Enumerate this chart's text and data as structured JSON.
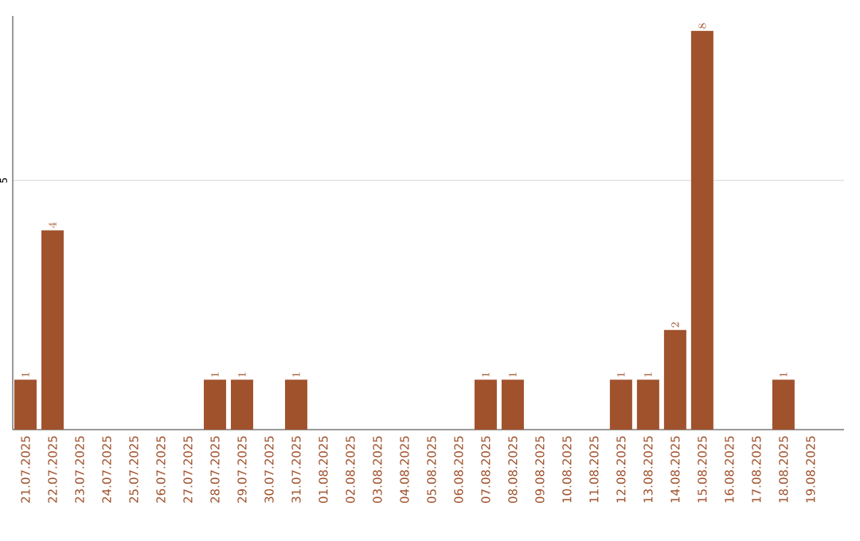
{
  "chart_data": {
    "type": "bar",
    "categories": [
      "21.07.2025",
      "22.07.2025",
      "23.07.2025",
      "24.07.2025",
      "25.07.2025",
      "26.07.2025",
      "27.07.2025",
      "28.07.2025",
      "29.07.2025",
      "30.07.2025",
      "31.07.2025",
      "01.08.2025",
      "02.08.2025",
      "03.08.2025",
      "04.08.2025",
      "05.08.2025",
      "06.08.2025",
      "07.08.2025",
      "08.08.2025",
      "09.08.2025",
      "10.08.2025",
      "11.08.2025",
      "12.08.2025",
      "13.08.2025",
      "14.08.2025",
      "15.08.2025",
      "16.08.2025",
      "17.08.2025",
      "18.08.2025",
      "19.08.2025"
    ],
    "values": [
      1,
      4,
      null,
      null,
      null,
      null,
      null,
      1,
      1,
      null,
      1,
      null,
      null,
      null,
      null,
      null,
      null,
      1,
      1,
      null,
      null,
      null,
      1,
      1,
      2,
      8,
      null,
      null,
      1,
      null
    ],
    "color": "#a0522d",
    "ylim": [
      0,
      8.3
    ],
    "yticks": [
      5
    ],
    "grid": "y",
    "data_labels": true
  }
}
